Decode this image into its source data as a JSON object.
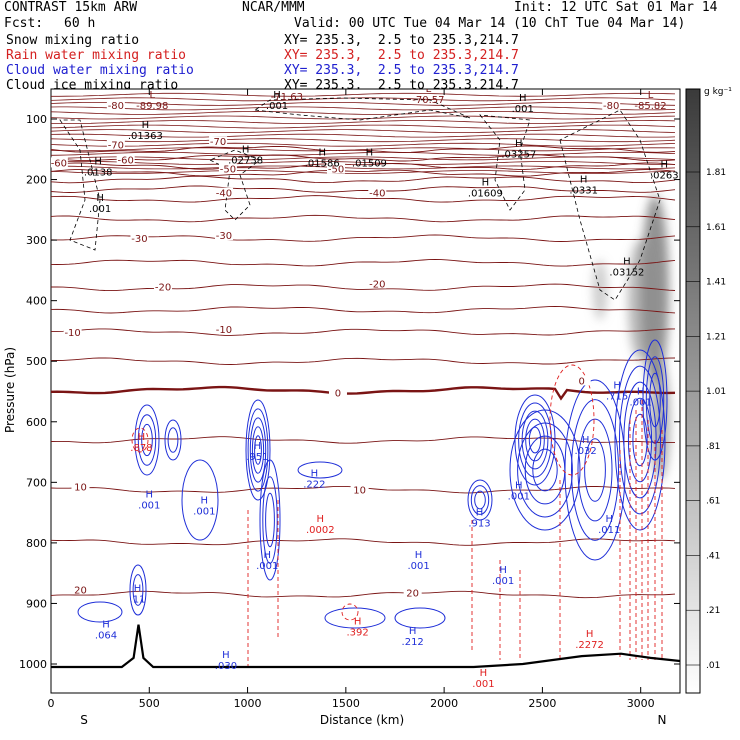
{
  "header": {
    "model": "CONTRAST 15km ARW",
    "org": "NCAR/MMM",
    "init": "Init: 12 UTC Sat 01 Mar 14",
    "fcst_label": "Fcst:",
    "fcst_value": "60 h",
    "valid": "Valid: 00 UTC Tue 04 Mar 14 (10 ChT Tue 04 Mar 14)"
  },
  "fields": [
    {
      "name": "Snow mixing ratio",
      "xy": "",
      "color": "#000000"
    },
    {
      "name": "Rain water mixing ratio",
      "xy": "XY= 235.3,  2.5 to 235.3,214.7",
      "color": "#d42020"
    },
    {
      "name": "Cloud water mixing ratio",
      "xy": "XY= 235.3,  2.5 to 235.3,214.7",
      "color": "#2020d0"
    },
    {
      "name": "Cloud ice mixing ratio",
      "xy": "XY= 235.3,  2.5 to 235.3,214.7",
      "color": "#000000"
    }
  ],
  "snow_xy": "XY= 235.3,  2.5 to 235.3,214.7",
  "colors": {
    "temperature": "#7a1414",
    "rain": "#e02020",
    "cloud_water": "#1f2fd8",
    "cloud_ice": "#000000",
    "terrain": "#000000"
  },
  "chart_data": {
    "type": "cross-section",
    "xlabel": "Distance (km)",
    "ylabel": "Pressure (hPa)",
    "xlim": [
      0,
      3200
    ],
    "ylim": [
      1030,
      50
    ],
    "xticks": [
      0,
      500,
      1000,
      1500,
      2000,
      2500,
      3000
    ],
    "xtick_labels": [
      "0",
      "500",
      "1000",
      "1500",
      "2000",
      "2500",
      "3000"
    ],
    "yticks": [
      100,
      200,
      300,
      400,
      500,
      600,
      700,
      800,
      900,
      1000
    ],
    "ytick_labels": [
      "100",
      "200",
      "300",
      "400",
      "500",
      "600",
      "700",
      "800",
      "900",
      "1000"
    ],
    "left_end_label": "S",
    "right_end_label": "N",
    "colorbar": {
      "unit": "g kg⁻¹",
      "ticks": [
        ".01",
        ".21",
        ".41",
        ".61",
        ".81",
        "1.01",
        "1.21",
        "1.41",
        "1.61",
        "1.81"
      ]
    },
    "temperature_isotherms_C": [
      -80,
      -70,
      -60,
      -50,
      -40,
      -30,
      -20,
      -10,
      0,
      10,
      20
    ],
    "temperature_labels": [
      {
        "t": "-80",
        "x": 330,
        "p": 80
      },
      {
        "t": "-80",
        "x": 2850,
        "p": 80
      },
      {
        "t": "-70",
        "x": 330,
        "p": 145
      },
      {
        "t": "-70",
        "x": 850,
        "p": 140
      },
      {
        "t": "-60",
        "x": 40,
        "p": 175
      },
      {
        "t": "-60",
        "x": 380,
        "p": 170
      },
      {
        "t": "-50",
        "x": 900,
        "p": 185
      },
      {
        "t": "-50",
        "x": 1450,
        "p": 185
      },
      {
        "t": "-40",
        "x": 880,
        "p": 225
      },
      {
        "t": "-40",
        "x": 1660,
        "p": 225
      },
      {
        "t": "-30",
        "x": 450,
        "p": 300
      },
      {
        "t": "-30",
        "x": 880,
        "p": 295
      },
      {
        "t": "-20",
        "x": 570,
        "p": 380
      },
      {
        "t": "-20",
        "x": 1660,
        "p": 375
      },
      {
        "t": "-10",
        "x": 110,
        "p": 455
      },
      {
        "t": "-10",
        "x": 880,
        "p": 450
      },
      {
        "t": "0",
        "x": 1460,
        "p": 555
      },
      {
        "t": "0",
        "x": 2700,
        "p": 535
      },
      {
        "t": "10",
        "x": 150,
        "p": 710
      },
      {
        "t": "10",
        "x": 1570,
        "p": 715
      },
      {
        "t": "20",
        "x": 150,
        "p": 880
      },
      {
        "t": "20",
        "x": 1840,
        "p": 885
      }
    ],
    "extrema_labels": [
      {
        "kind": "L",
        "value": "-89.98",
        "x": 515,
        "p": 75,
        "series": "temperature"
      },
      {
        "kind": "L",
        "value": "-71.63",
        "x": 1200,
        "p": 60,
        "series": "temperature"
      },
      {
        "kind": "L",
        "value": "-70.57",
        "x": 1920,
        "p": 65,
        "series": "temperature"
      },
      {
        "kind": "L",
        "value": "-85.82",
        "x": 3050,
        "p": 75,
        "series": "temperature"
      },
      {
        "kind": "H",
        "value": ".001",
        "x": 1150,
        "p": 75,
        "series": "snow"
      },
      {
        "kind": "H",
        "value": ".01363",
        "x": 480,
        "p": 125,
        "series": "snow"
      },
      {
        "kind": "H",
        "value": ".02738",
        "x": 990,
        "p": 165,
        "series": "snow"
      },
      {
        "kind": "H",
        "value": ".01586",
        "x": 1380,
        "p": 170,
        "series": "snow"
      },
      {
        "kind": "H",
        "value": ".01509",
        "x": 1620,
        "p": 170,
        "series": "snow"
      },
      {
        "kind": "H",
        "value": ".0138",
        "x": 240,
        "p": 185,
        "series": "snow"
      },
      {
        "kind": "H",
        "value": ".001",
        "x": 250,
        "p": 245,
        "series": "snow"
      },
      {
        "kind": "H",
        "value": ".01609",
        "x": 2210,
        "p": 220,
        "series": "snow"
      },
      {
        "kind": "H",
        "value": ".0331",
        "x": 2710,
        "p": 215,
        "series": "snow"
      },
      {
        "kind": "H",
        "value": ".03257",
        "x": 2380,
        "p": 155,
        "series": "snow"
      },
      {
        "kind": "H",
        "value": ".03152",
        "x": 2930,
        "p": 350,
        "series": "snow"
      },
      {
        "kind": "H",
        "value": ".0263",
        "x": 3120,
        "p": 190,
        "series": "snow"
      },
      {
        "kind": "H",
        "value": ".001",
        "x": 2400,
        "p": 80,
        "series": "snow"
      },
      {
        "kind": "H",
        "value": ".878",
        "x": 460,
        "p": 640,
        "series": "rain"
      },
      {
        "kind": "H",
        "value": ".951",
        "x": 1050,
        "p": 655,
        "series": "cloud_water"
      },
      {
        "kind": "H",
        "value": ".222",
        "x": 1340,
        "p": 700,
        "series": "cloud_water"
      },
      {
        "kind": "H",
        "value": ".0002",
        "x": 1370,
        "p": 775,
        "series": "rain"
      },
      {
        "kind": "H",
        "value": ".001",
        "x": 500,
        "p": 735,
        "series": "cloud_water"
      },
      {
        "kind": "H",
        "value": ".001",
        "x": 780,
        "p": 745,
        "series": "cloud_water"
      },
      {
        "kind": "H",
        "value": ".001",
        "x": 1100,
        "p": 835,
        "series": "cloud_water"
      },
      {
        "kind": "H",
        "value": ".001",
        "x": 1870,
        "p": 835,
        "series": "cloud_water"
      },
      {
        "kind": "H",
        "value": ".913",
        "x": 2180,
        "p": 765,
        "series": "cloud_water"
      },
      {
        "kind": "H",
        "value": ".032",
        "x": 2720,
        "p": 645,
        "series": "cloud_water"
      },
      {
        "kind": "H",
        "value": ".001",
        "x": 2380,
        "p": 720,
        "series": "cloud_water"
      },
      {
        "kind": "H",
        "value": ".001",
        "x": 2300,
        "p": 860,
        "series": "cloud_water"
      },
      {
        "kind": "H",
        "value": ".011",
        "x": 2840,
        "p": 775,
        "series": "cloud_water"
      },
      {
        "kind": "H",
        "value": ".715",
        "x": 2880,
        "p": 555,
        "series": "cloud_water"
      },
      {
        "kind": "H",
        "value": ".001",
        "x": 3000,
        "p": 565,
        "series": "cloud_water"
      },
      {
        "kind": "H",
        "value": ".11",
        "x": 440,
        "p": 890,
        "series": "cloud_water"
      },
      {
        "kind": "H",
        "value": ".064",
        "x": 280,
        "p": 950,
        "series": "cloud_water"
      },
      {
        "kind": "H",
        "value": ".030",
        "x": 890,
        "p": 1000,
        "series": "cloud_water"
      },
      {
        "kind": "H",
        "value": ".212",
        "x": 1840,
        "p": 960,
        "series": "cloud_water"
      },
      {
        "kind": "H",
        "value": ".392",
        "x": 1560,
        "p": 945,
        "series": "rain"
      },
      {
        "kind": "H",
        "value": ".2272",
        "x": 2740,
        "p": 965,
        "series": "rain"
      },
      {
        "kind": "H",
        "value": ".001",
        "x": 2200,
        "p": 1030,
        "series": "rain"
      }
    ],
    "terrain_pressure_hPa": [
      {
        "x": 0,
        "p": 1005
      },
      {
        "x": 120,
        "p": 1005
      },
      {
        "x": 360,
        "p": 1005
      },
      {
        "x": 420,
        "p": 990
      },
      {
        "x": 445,
        "p": 935
      },
      {
        "x": 470,
        "p": 990
      },
      {
        "x": 520,
        "p": 1005
      },
      {
        "x": 1000,
        "p": 1005
      },
      {
        "x": 2150,
        "p": 1005
      },
      {
        "x": 2400,
        "p": 1000
      },
      {
        "x": 2700,
        "p": 987
      },
      {
        "x": 2900,
        "p": 983
      },
      {
        "x": 3050,
        "p": 990
      },
      {
        "x": 3200,
        "p": 995
      }
    ]
  }
}
